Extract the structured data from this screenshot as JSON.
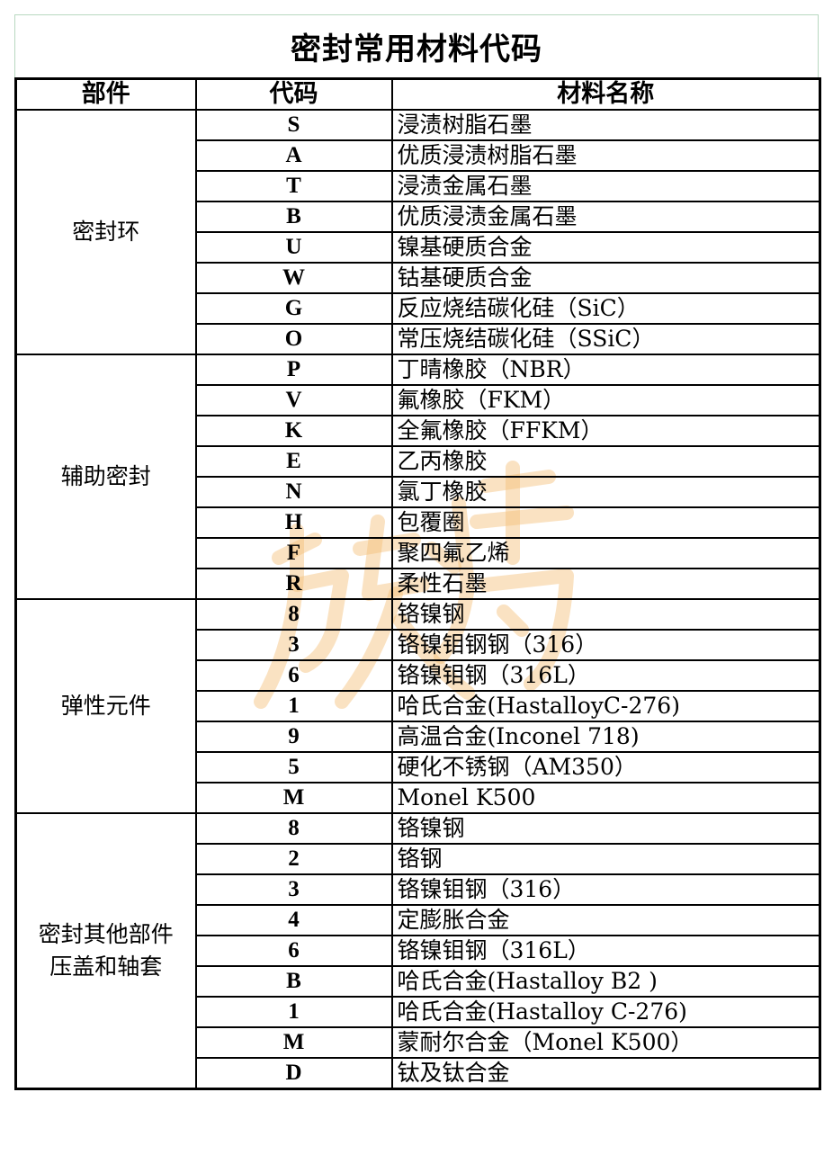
{
  "title": "密封常用材料代码",
  "headers": {
    "part": "部件",
    "code": "代码",
    "name": "材料名称"
  },
  "watermark": "旅将",
  "groups": [
    {
      "part": "密封环",
      "rows": [
        {
          "code": "S",
          "name": "浸渍树脂石墨"
        },
        {
          "code": "A",
          "name": "优质浸渍树脂石墨"
        },
        {
          "code": "T",
          "name": "浸渍金属石墨"
        },
        {
          "code": "B",
          "name": "优质浸渍金属石墨"
        },
        {
          "code": "U",
          "name": "镍基硬质合金"
        },
        {
          "code": "W",
          "name": "钴基硬质合金"
        },
        {
          "code": "G",
          "name": "反应烧结碳化硅（SiC）"
        },
        {
          "code": "O",
          "name": "常压烧结碳化硅（SSiC）"
        }
      ]
    },
    {
      "part": "辅助密封",
      "rows": [
        {
          "code": "P",
          "name": "丁晴橡胶（NBR）"
        },
        {
          "code": "V",
          "name": "氟橡胶（FKM）"
        },
        {
          "code": "K",
          "name": "全氟橡胶（FFKM）"
        },
        {
          "code": "E",
          "name": "乙丙橡胶"
        },
        {
          "code": "N",
          "name": "氯丁橡胶"
        },
        {
          "code": "H",
          "name": "包覆圈"
        },
        {
          "code": "F",
          "name": "聚四氟乙烯"
        },
        {
          "code": "R",
          "name": "柔性石墨"
        }
      ]
    },
    {
      "part": "弹性元件",
      "rows": [
        {
          "code": "8",
          "name": "铬镍钢"
        },
        {
          "code": "3",
          "name": "铬镍钼钢钢（316）"
        },
        {
          "code": "6",
          "name": "铬镍钼钢（316L）"
        },
        {
          "code": "1",
          "name": "哈氏合金(HastalloyC-276)"
        },
        {
          "code": "9",
          "name": "高温合金(Inconel 718)"
        },
        {
          "code": "5",
          "name": "硬化不锈钢（AM350）"
        },
        {
          "code": "M",
          "name": "Monel K500"
        }
      ]
    },
    {
      "part": "密封其他部件\n压盖和轴套",
      "rows": [
        {
          "code": "8",
          "name": "铬镍钢"
        },
        {
          "code": "2",
          "name": "铬钢"
        },
        {
          "code": "3",
          "name": "铬镍钼钢（316）"
        },
        {
          "code": "4",
          "name": "定膨胀合金"
        },
        {
          "code": "6",
          "name": "铬镍钼钢（316L）"
        },
        {
          "code": "B",
          "name": "哈氏合金(Hastalloy B2 )"
        },
        {
          "code": "1",
          "name": "哈氏合金(Hastalloy C-276)"
        },
        {
          "code": "M",
          "name": "蒙耐尔合金（Monel K500）"
        },
        {
          "code": "D",
          "name": "钛及钛合金"
        }
      ]
    }
  ]
}
